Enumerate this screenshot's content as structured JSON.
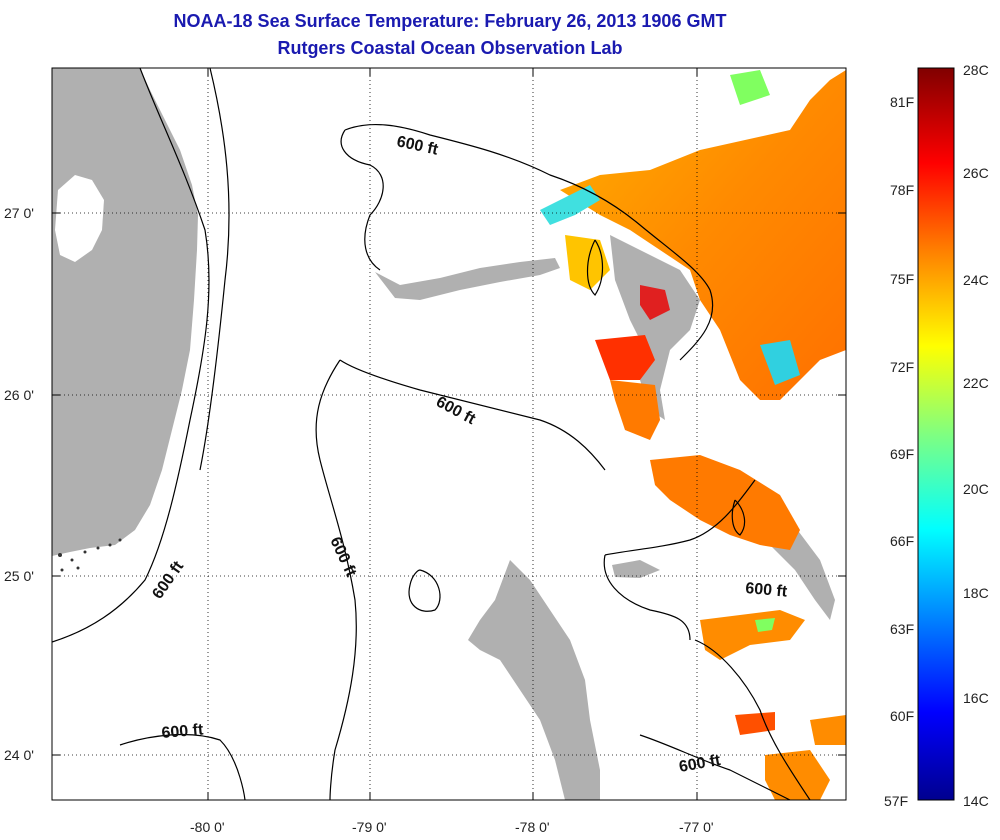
{
  "title": "NOAA-18 Sea Surface Temperature:  February 26, 2013 1906 GMT",
  "subtitle": "Rutgers Coastal Ocean Observation Lab",
  "map": {
    "lat_ticks": [
      "27 0'",
      "26 0'",
      "25 0'",
      "24 0'"
    ],
    "lon_ticks": [
      "-80 0'",
      "-79 0'",
      "-78 0'",
      "-77 0'"
    ],
    "contour_label": "600 ft",
    "colors": {
      "land": "#b0b0b0",
      "ocean": "#ffffff",
      "contour": "#000000"
    }
  },
  "colorbar": {
    "fahrenheit_labels": [
      "81F",
      "78F",
      "75F",
      "72F",
      "69F",
      "66F",
      "63F",
      "60F",
      "57F"
    ],
    "celsius_labels": [
      "28C",
      "26C",
      "24C",
      "22C",
      "20C",
      "18C",
      "16C",
      "14C"
    ],
    "colormap": [
      "#00008f",
      "#0000ff",
      "#0080ff",
      "#00ffff",
      "#80ff80",
      "#ffff00",
      "#ff8000",
      "#ff0000",
      "#800000"
    ]
  }
}
